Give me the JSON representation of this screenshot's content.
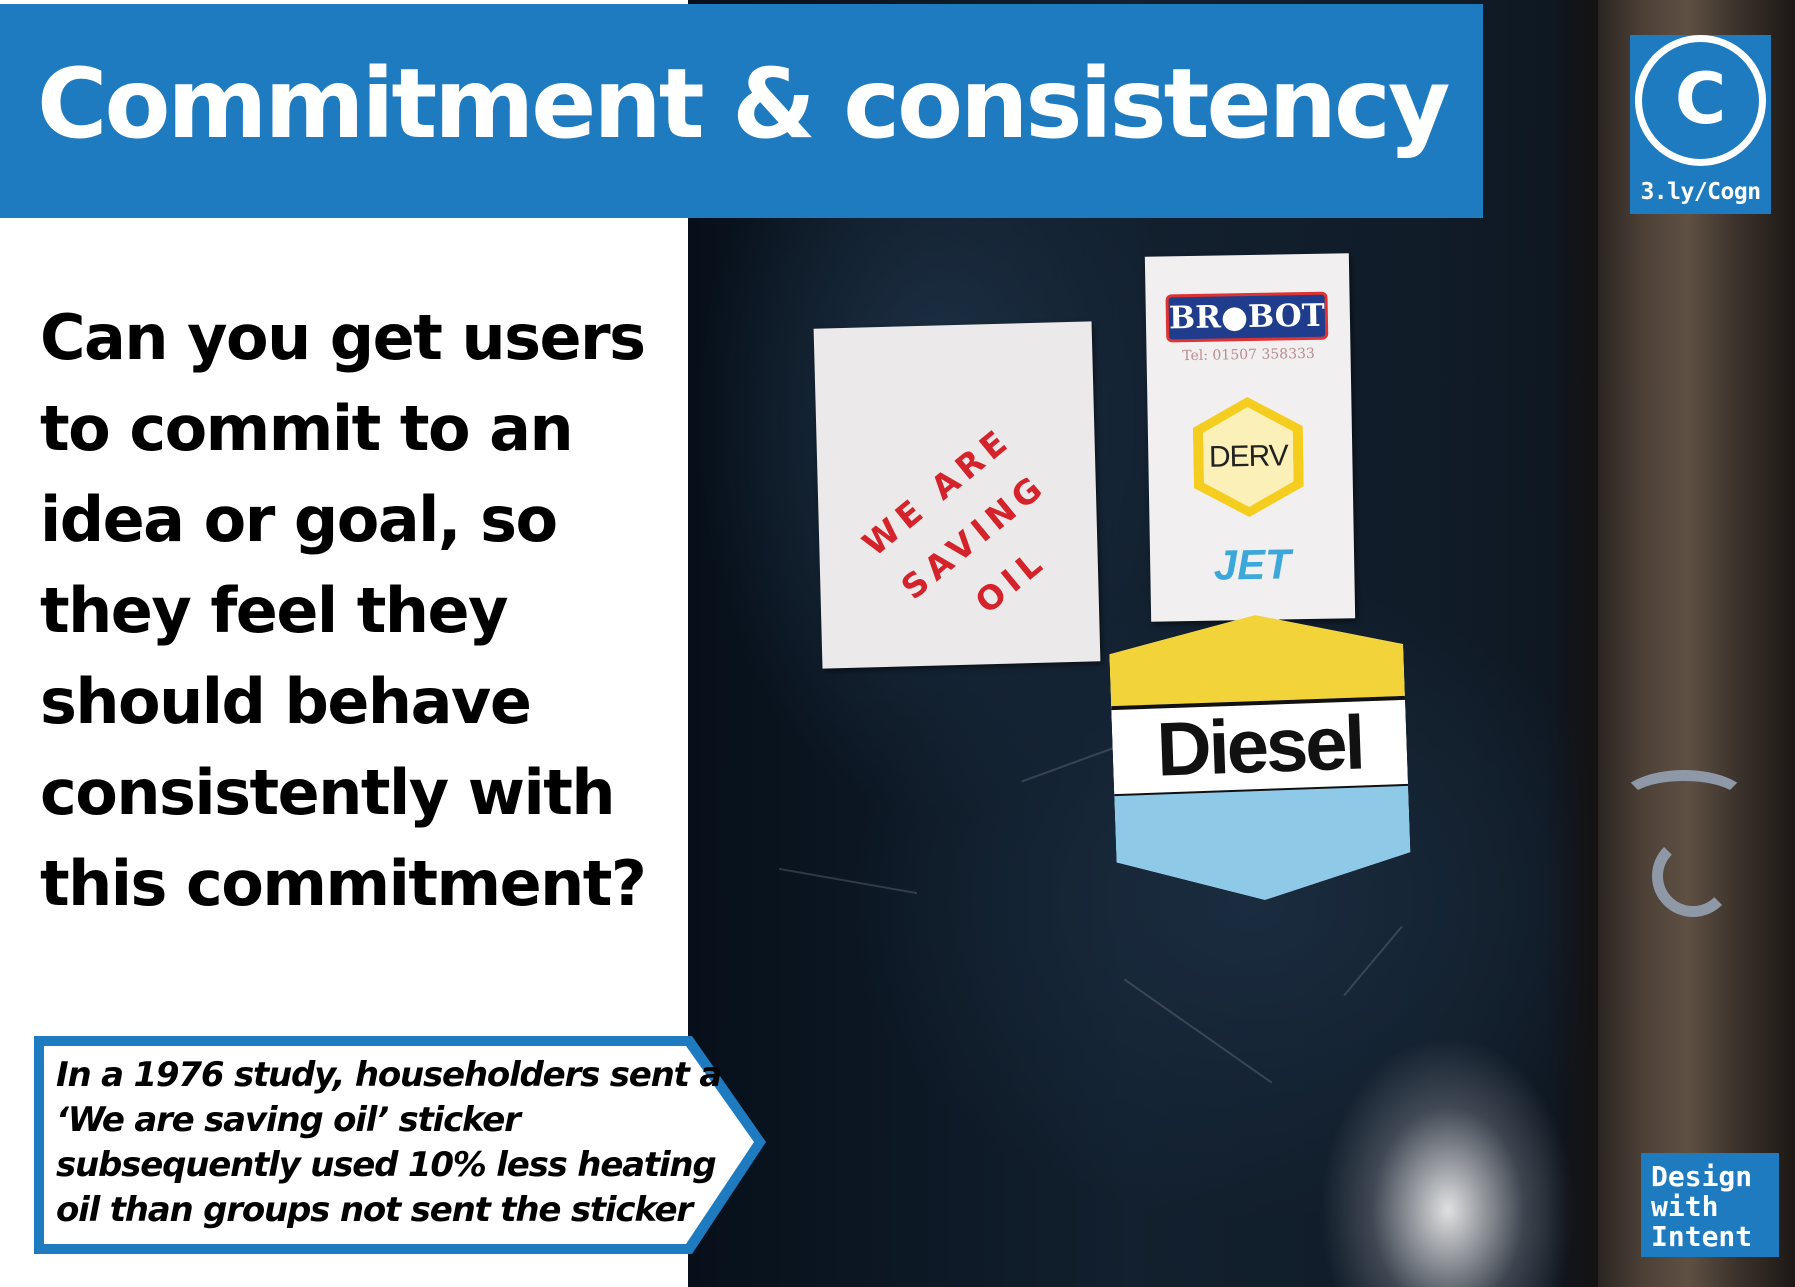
{
  "title": "Commitment & consistency",
  "badge": {
    "letter": "C",
    "url": "3.ly/Cogn"
  },
  "question": "Can you get users to commit to an idea or goal, so they feel they should behave consistently with this commitment?",
  "callout": "In a 1976 study, householders sent a ‘We are saving oil’ sticker subsequently used 10% less heating oil than groups not sent the sticker",
  "photo": {
    "sticker_saving": [
      "WE ARE",
      "SAVING",
      "OIL"
    ],
    "sticker_brobot": {
      "logo": "BR●BOT",
      "tel": "Tel: 01507 358333",
      "hex": "DERV",
      "jet": "JET"
    },
    "sticker_diesel": "Diesel"
  },
  "footer": {
    "line1": "Design",
    "line2": "with",
    "line3": "Intent"
  },
  "colors": {
    "brand_blue": "#1f7bc0",
    "text": "#000000",
    "photo_dark": "#0e1a26"
  }
}
